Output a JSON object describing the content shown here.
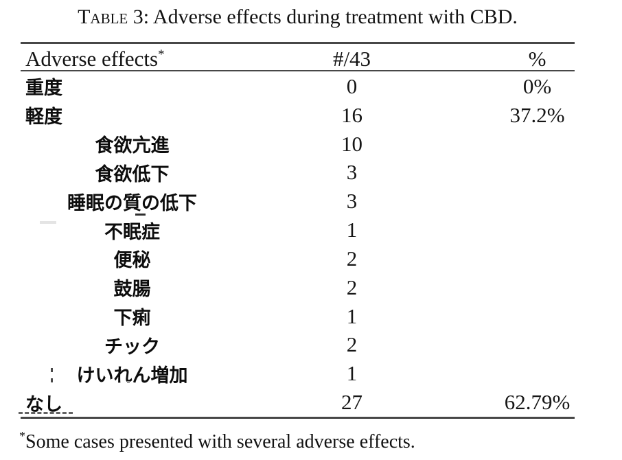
{
  "title": {
    "prefix": "Table 3:",
    "rest": " Adverse effects during treatment with CBD."
  },
  "table": {
    "header": {
      "label": "Adverse effects",
      "asterisk": "*",
      "count": "#/43",
      "percent": "%"
    },
    "rows": [
      {
        "label": "重度",
        "indent": false,
        "count": "0",
        "percent": "0%"
      },
      {
        "label": "軽度",
        "indent": false,
        "count": "16",
        "percent": "37.2%"
      },
      {
        "label": "食欲亢進",
        "indent": true,
        "count": "10",
        "percent": ""
      },
      {
        "label": "食欲低下",
        "indent": true,
        "count": "3",
        "percent": ""
      },
      {
        "label": "睡眠の質の低下",
        "indent": true,
        "count": "3",
        "percent": ""
      },
      {
        "label": "不眠症",
        "indent": true,
        "count": "1",
        "percent": ""
      },
      {
        "label": "便秘",
        "indent": true,
        "count": "2",
        "percent": ""
      },
      {
        "label": "鼓腸",
        "indent": true,
        "count": "2",
        "percent": ""
      },
      {
        "label": "下痢",
        "indent": true,
        "count": "1",
        "percent": ""
      },
      {
        "label": "チック",
        "indent": true,
        "count": "2",
        "percent": ""
      },
      {
        "label": "けいれん増加",
        "indent": true,
        "count": "1",
        "percent": ""
      },
      {
        "label": "なし",
        "indent": false,
        "count": "27",
        "percent": "62.79%"
      }
    ]
  },
  "footnote": {
    "marker": "*",
    "text": "Some cases presented with several adverse effects."
  },
  "colors": {
    "text": "#141414",
    "rule": "#474747",
    "background": "#ffffff"
  }
}
